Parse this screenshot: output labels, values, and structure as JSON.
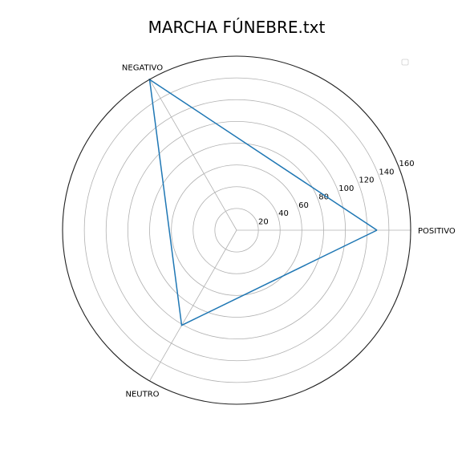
{
  "chart_data": {
    "type": "radar",
    "title": "MARCHA FÚNEBRE.txt",
    "categories": [
      "POSITIVO",
      "NEGATIVO",
      "NEUTRO"
    ],
    "angles_deg": [
      0,
      120,
      240
    ],
    "series": [
      {
        "values": [
          129,
          160,
          101
        ],
        "color": "#1f77b4"
      }
    ],
    "rlim": [
      0,
      160
    ],
    "rticks": [
      20,
      40,
      60,
      80,
      100,
      120,
      140,
      160
    ],
    "grid": true,
    "legend": "top-right",
    "legend_entries": []
  }
}
